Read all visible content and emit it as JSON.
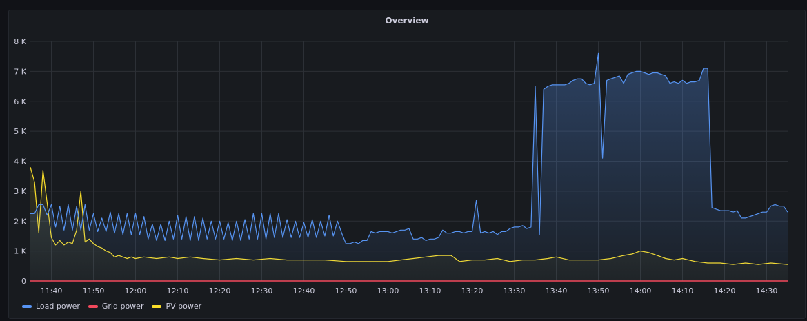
{
  "panel": {
    "title": "Overview"
  },
  "chart_data": {
    "type": "area",
    "title": "Overview",
    "xlabel": "",
    "ylabel": "",
    "xlim": [
      "11:35",
      "14:35"
    ],
    "ylim": [
      0,
      8000
    ],
    "y_ticks": [
      0,
      1000,
      2000,
      3000,
      4000,
      5000,
      6000,
      7000,
      8000
    ],
    "y_tick_labels": [
      "0",
      "1 K",
      "2 K",
      "3 K",
      "4 K",
      "5 K",
      "6 K",
      "7 K",
      "8 K"
    ],
    "x_ticks": [
      "11:40",
      "11:50",
      "12:00",
      "12:10",
      "12:20",
      "12:30",
      "12:40",
      "12:50",
      "13:00",
      "13:10",
      "13:20",
      "13:30",
      "13:40",
      "13:50",
      "14:00",
      "14:10",
      "14:20",
      "14:30"
    ],
    "grid": true,
    "legend": "bottom-left",
    "series": [
      {
        "name": "Load power",
        "color": "#5794f2",
        "points": [
          [
            "11:35",
            2250
          ],
          [
            "11:36",
            2250
          ],
          [
            "11:37",
            2550
          ],
          [
            "11:38",
            2550
          ],
          [
            "11:39",
            2200
          ],
          [
            "11:40",
            2550
          ],
          [
            "11:41",
            1800
          ],
          [
            "11:42",
            2500
          ],
          [
            "11:43",
            1700
          ],
          [
            "11:44",
            2550
          ],
          [
            "11:45",
            1700
          ],
          [
            "11:46",
            2500
          ],
          [
            "11:47",
            1700
          ],
          [
            "11:48",
            2550
          ],
          [
            "11:49",
            1700
          ],
          [
            "11:50",
            2250
          ],
          [
            "11:51",
            1650
          ],
          [
            "11:52",
            2100
          ],
          [
            "11:53",
            1650
          ],
          [
            "11:54",
            2300
          ],
          [
            "11:55",
            1600
          ],
          [
            "11:56",
            2250
          ],
          [
            "11:57",
            1550
          ],
          [
            "11:58",
            2250
          ],
          [
            "11:59",
            1550
          ],
          [
            "12:00",
            2250
          ],
          [
            "12:01",
            1550
          ],
          [
            "12:02",
            2150
          ],
          [
            "12:03",
            1400
          ],
          [
            "12:04",
            1900
          ],
          [
            "12:05",
            1350
          ],
          [
            "12:06",
            1900
          ],
          [
            "12:07",
            1350
          ],
          [
            "12:08",
            2000
          ],
          [
            "12:09",
            1400
          ],
          [
            "12:10",
            2200
          ],
          [
            "12:11",
            1400
          ],
          [
            "12:12",
            2150
          ],
          [
            "12:13",
            1350
          ],
          [
            "12:14",
            2150
          ],
          [
            "12:15",
            1350
          ],
          [
            "12:16",
            2100
          ],
          [
            "12:17",
            1400
          ],
          [
            "12:18",
            2000
          ],
          [
            "12:19",
            1400
          ],
          [
            "12:20",
            2000
          ],
          [
            "12:21",
            1400
          ],
          [
            "12:22",
            1950
          ],
          [
            "12:23",
            1350
          ],
          [
            "12:24",
            2000
          ],
          [
            "12:25",
            1350
          ],
          [
            "12:26",
            2050
          ],
          [
            "12:27",
            1400
          ],
          [
            "12:28",
            2250
          ],
          [
            "12:29",
            1400
          ],
          [
            "12:30",
            2250
          ],
          [
            "12:31",
            1400
          ],
          [
            "12:32",
            2250
          ],
          [
            "12:33",
            1450
          ],
          [
            "12:34",
            2250
          ],
          [
            "12:35",
            1450
          ],
          [
            "12:36",
            2050
          ],
          [
            "12:37",
            1450
          ],
          [
            "12:38",
            2000
          ],
          [
            "12:39",
            1450
          ],
          [
            "12:40",
            1950
          ],
          [
            "12:41",
            1450
          ],
          [
            "12:42",
            2050
          ],
          [
            "12:43",
            1450
          ],
          [
            "12:44",
            2000
          ],
          [
            "12:45",
            1500
          ],
          [
            "12:46",
            2200
          ],
          [
            "12:47",
            1500
          ],
          [
            "12:48",
            2000
          ],
          [
            "12:49",
            1600
          ],
          [
            "12:50",
            1250
          ],
          [
            "12:51",
            1250
          ],
          [
            "12:52",
            1300
          ],
          [
            "12:53",
            1250
          ],
          [
            "12:54",
            1350
          ],
          [
            "12:55",
            1350
          ],
          [
            "12:56",
            1650
          ],
          [
            "12:57",
            1600
          ],
          [
            "12:58",
            1650
          ],
          [
            "12:59",
            1650
          ],
          [
            "13:00",
            1650
          ],
          [
            "13:01",
            1600
          ],
          [
            "13:02",
            1650
          ],
          [
            "13:03",
            1700
          ],
          [
            "13:04",
            1700
          ],
          [
            "13:05",
            1750
          ],
          [
            "13:06",
            1400
          ],
          [
            "13:07",
            1400
          ],
          [
            "13:08",
            1450
          ],
          [
            "13:09",
            1350
          ],
          [
            "13:10",
            1400
          ],
          [
            "13:11",
            1400
          ],
          [
            "13:12",
            1450
          ],
          [
            "13:13",
            1700
          ],
          [
            "13:14",
            1600
          ],
          [
            "13:15",
            1600
          ],
          [
            "13:16",
            1650
          ],
          [
            "13:17",
            1650
          ],
          [
            "13:18",
            1600
          ],
          [
            "13:19",
            1650
          ],
          [
            "13:20",
            1650
          ],
          [
            "13:21",
            2700
          ],
          [
            "13:22",
            1600
          ],
          [
            "13:23",
            1650
          ],
          [
            "13:24",
            1600
          ],
          [
            "13:25",
            1650
          ],
          [
            "13:26",
            1550
          ],
          [
            "13:27",
            1650
          ],
          [
            "13:28",
            1650
          ],
          [
            "13:29",
            1750
          ],
          [
            "13:30",
            1800
          ],
          [
            "13:31",
            1800
          ],
          [
            "13:32",
            1850
          ],
          [
            "13:33",
            1750
          ],
          [
            "13:34",
            1800
          ],
          [
            "13:35",
            6500
          ],
          [
            "13:36",
            1550
          ],
          [
            "13:37",
            6400
          ],
          [
            "13:38",
            6500
          ],
          [
            "13:39",
            6550
          ],
          [
            "13:40",
            6550
          ],
          [
            "13:41",
            6550
          ],
          [
            "13:42",
            6550
          ],
          [
            "13:43",
            6600
          ],
          [
            "13:44",
            6700
          ],
          [
            "13:45",
            6750
          ],
          [
            "13:46",
            6750
          ],
          [
            "13:47",
            6600
          ],
          [
            "13:48",
            6550
          ],
          [
            "13:49",
            6600
          ],
          [
            "13:50",
            7600
          ],
          [
            "13:51",
            4100
          ],
          [
            "13:52",
            6700
          ],
          [
            "13:53",
            6750
          ],
          [
            "13:54",
            6800
          ],
          [
            "13:55",
            6850
          ],
          [
            "13:56",
            6600
          ],
          [
            "13:57",
            6900
          ],
          [
            "13:58",
            6950
          ],
          [
            "13:59",
            7000
          ],
          [
            "14:00",
            7000
          ],
          [
            "14:01",
            6950
          ],
          [
            "14:02",
            6900
          ],
          [
            "14:03",
            6950
          ],
          [
            "14:04",
            6950
          ],
          [
            "14:05",
            6900
          ],
          [
            "14:06",
            6850
          ],
          [
            "14:07",
            6600
          ],
          [
            "14:08",
            6650
          ],
          [
            "14:09",
            6600
          ],
          [
            "14:10",
            6700
          ],
          [
            "14:11",
            6600
          ],
          [
            "14:12",
            6650
          ],
          [
            "14:13",
            6650
          ],
          [
            "14:14",
            6700
          ],
          [
            "14:15",
            7100
          ],
          [
            "14:16",
            7100
          ],
          [
            "14:17",
            2450
          ],
          [
            "14:18",
            2400
          ],
          [
            "14:19",
            2350
          ],
          [
            "14:20",
            2350
          ],
          [
            "14:21",
            2350
          ],
          [
            "14:22",
            2300
          ],
          [
            "14:23",
            2350
          ],
          [
            "14:24",
            2100
          ],
          [
            "14:25",
            2100
          ],
          [
            "14:26",
            2150
          ],
          [
            "14:27",
            2200
          ],
          [
            "14:28",
            2250
          ],
          [
            "14:29",
            2300
          ],
          [
            "14:30",
            2300
          ],
          [
            "14:31",
            2500
          ],
          [
            "14:32",
            2550
          ],
          [
            "14:33",
            2500
          ],
          [
            "14:34",
            2500
          ],
          [
            "14:35",
            2300
          ]
        ]
      },
      {
        "name": "Grid power",
        "color": "#f2495c",
        "points": [
          [
            "11:35",
            0
          ],
          [
            "14:35",
            0
          ]
        ]
      },
      {
        "name": "PV power",
        "color": "#fade2a",
        "points": [
          [
            "11:35",
            3800
          ],
          [
            "11:36",
            3300
          ],
          [
            "11:37",
            1600
          ],
          [
            "11:38",
            3700
          ],
          [
            "11:39",
            2600
          ],
          [
            "11:40",
            1450
          ],
          [
            "11:41",
            1200
          ],
          [
            "11:42",
            1350
          ],
          [
            "11:43",
            1200
          ],
          [
            "11:44",
            1300
          ],
          [
            "11:45",
            1250
          ],
          [
            "11:46",
            1700
          ],
          [
            "11:47",
            3000
          ],
          [
            "11:48",
            1300
          ],
          [
            "11:49",
            1400
          ],
          [
            "11:50",
            1250
          ],
          [
            "11:51",
            1150
          ],
          [
            "11:52",
            1100
          ],
          [
            "11:53",
            1000
          ],
          [
            "11:54",
            950
          ],
          [
            "11:55",
            800
          ],
          [
            "11:56",
            850
          ],
          [
            "11:57",
            800
          ],
          [
            "11:58",
            750
          ],
          [
            "11:59",
            800
          ],
          [
            "12:00",
            750
          ],
          [
            "12:02",
            800
          ],
          [
            "12:05",
            750
          ],
          [
            "12:08",
            800
          ],
          [
            "12:10",
            750
          ],
          [
            "12:13",
            800
          ],
          [
            "12:16",
            750
          ],
          [
            "12:20",
            700
          ],
          [
            "12:24",
            750
          ],
          [
            "12:28",
            700
          ],
          [
            "12:32",
            750
          ],
          [
            "12:36",
            700
          ],
          [
            "12:40",
            700
          ],
          [
            "12:45",
            700
          ],
          [
            "12:50",
            650
          ],
          [
            "12:55",
            650
          ],
          [
            "13:00",
            650
          ],
          [
            "13:03",
            700
          ],
          [
            "13:06",
            750
          ],
          [
            "13:09",
            800
          ],
          [
            "13:12",
            850
          ],
          [
            "13:15",
            850
          ],
          [
            "13:17",
            650
          ],
          [
            "13:20",
            700
          ],
          [
            "13:23",
            700
          ],
          [
            "13:26",
            750
          ],
          [
            "13:29",
            650
          ],
          [
            "13:32",
            700
          ],
          [
            "13:35",
            700
          ],
          [
            "13:38",
            750
          ],
          [
            "13:40",
            800
          ],
          [
            "13:43",
            700
          ],
          [
            "13:46",
            700
          ],
          [
            "13:50",
            700
          ],
          [
            "13:53",
            750
          ],
          [
            "13:56",
            850
          ],
          [
            "13:58",
            900
          ],
          [
            "14:00",
            1000
          ],
          [
            "14:02",
            950
          ],
          [
            "14:04",
            850
          ],
          [
            "14:06",
            750
          ],
          [
            "14:08",
            700
          ],
          [
            "14:10",
            750
          ],
          [
            "14:13",
            650
          ],
          [
            "14:16",
            600
          ],
          [
            "14:19",
            600
          ],
          [
            "14:22",
            550
          ],
          [
            "14:25",
            600
          ],
          [
            "14:28",
            550
          ],
          [
            "14:31",
            600
          ],
          [
            "14:35",
            550
          ]
        ]
      }
    ]
  }
}
